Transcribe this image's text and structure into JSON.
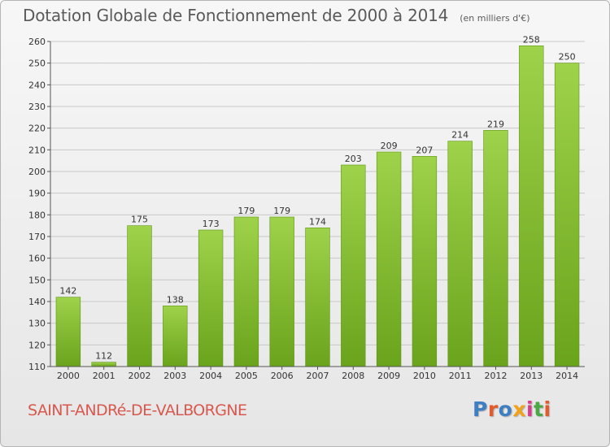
{
  "header": {
    "title": "Dotation Globale de Fonctionnement de 2000 à 2014",
    "subtitle": "(en milliers d'€)"
  },
  "footer": {
    "commune": "SAINT-ANDRé-DE-VALBORGNE",
    "logo_text": "Proxiti",
    "logo_colors": [
      "#3e7fc4",
      "#e55a2b",
      "#3e7fc4",
      "#f1a21c",
      "#d93c8a",
      "#4aa845",
      "#e55a2b"
    ]
  },
  "colors": {
    "bar_light": "#9ed24a",
    "bar_dark": "#6aa31c",
    "grid": "#c8c8c8",
    "axis_text": "#333333"
  },
  "chart_data": {
    "type": "bar",
    "title": "Dotation Globale de Fonctionnement de 2000 à 2014",
    "subtitle": "(en milliers d'€)",
    "categories": [
      "2000",
      "2001",
      "2002",
      "2003",
      "2004",
      "2005",
      "2006",
      "2007",
      "2008",
      "2009",
      "2010",
      "2011",
      "2012",
      "2013",
      "2014"
    ],
    "values": [
      142,
      112,
      175,
      138,
      173,
      179,
      179,
      174,
      203,
      209,
      207,
      214,
      219,
      258,
      250
    ],
    "data_labels": [
      "142",
      "112",
      "175",
      "138",
      "173",
      "179",
      "179",
      "174",
      "203",
      "209",
      "207",
      "214",
      "219",
      "258",
      "250"
    ],
    "yticks": [
      110,
      120,
      130,
      140,
      150,
      160,
      170,
      180,
      190,
      200,
      210,
      220,
      230,
      240,
      250,
      260
    ],
    "ylim": [
      110,
      260
    ],
    "grid": true,
    "xlabel": "",
    "ylabel": ""
  }
}
